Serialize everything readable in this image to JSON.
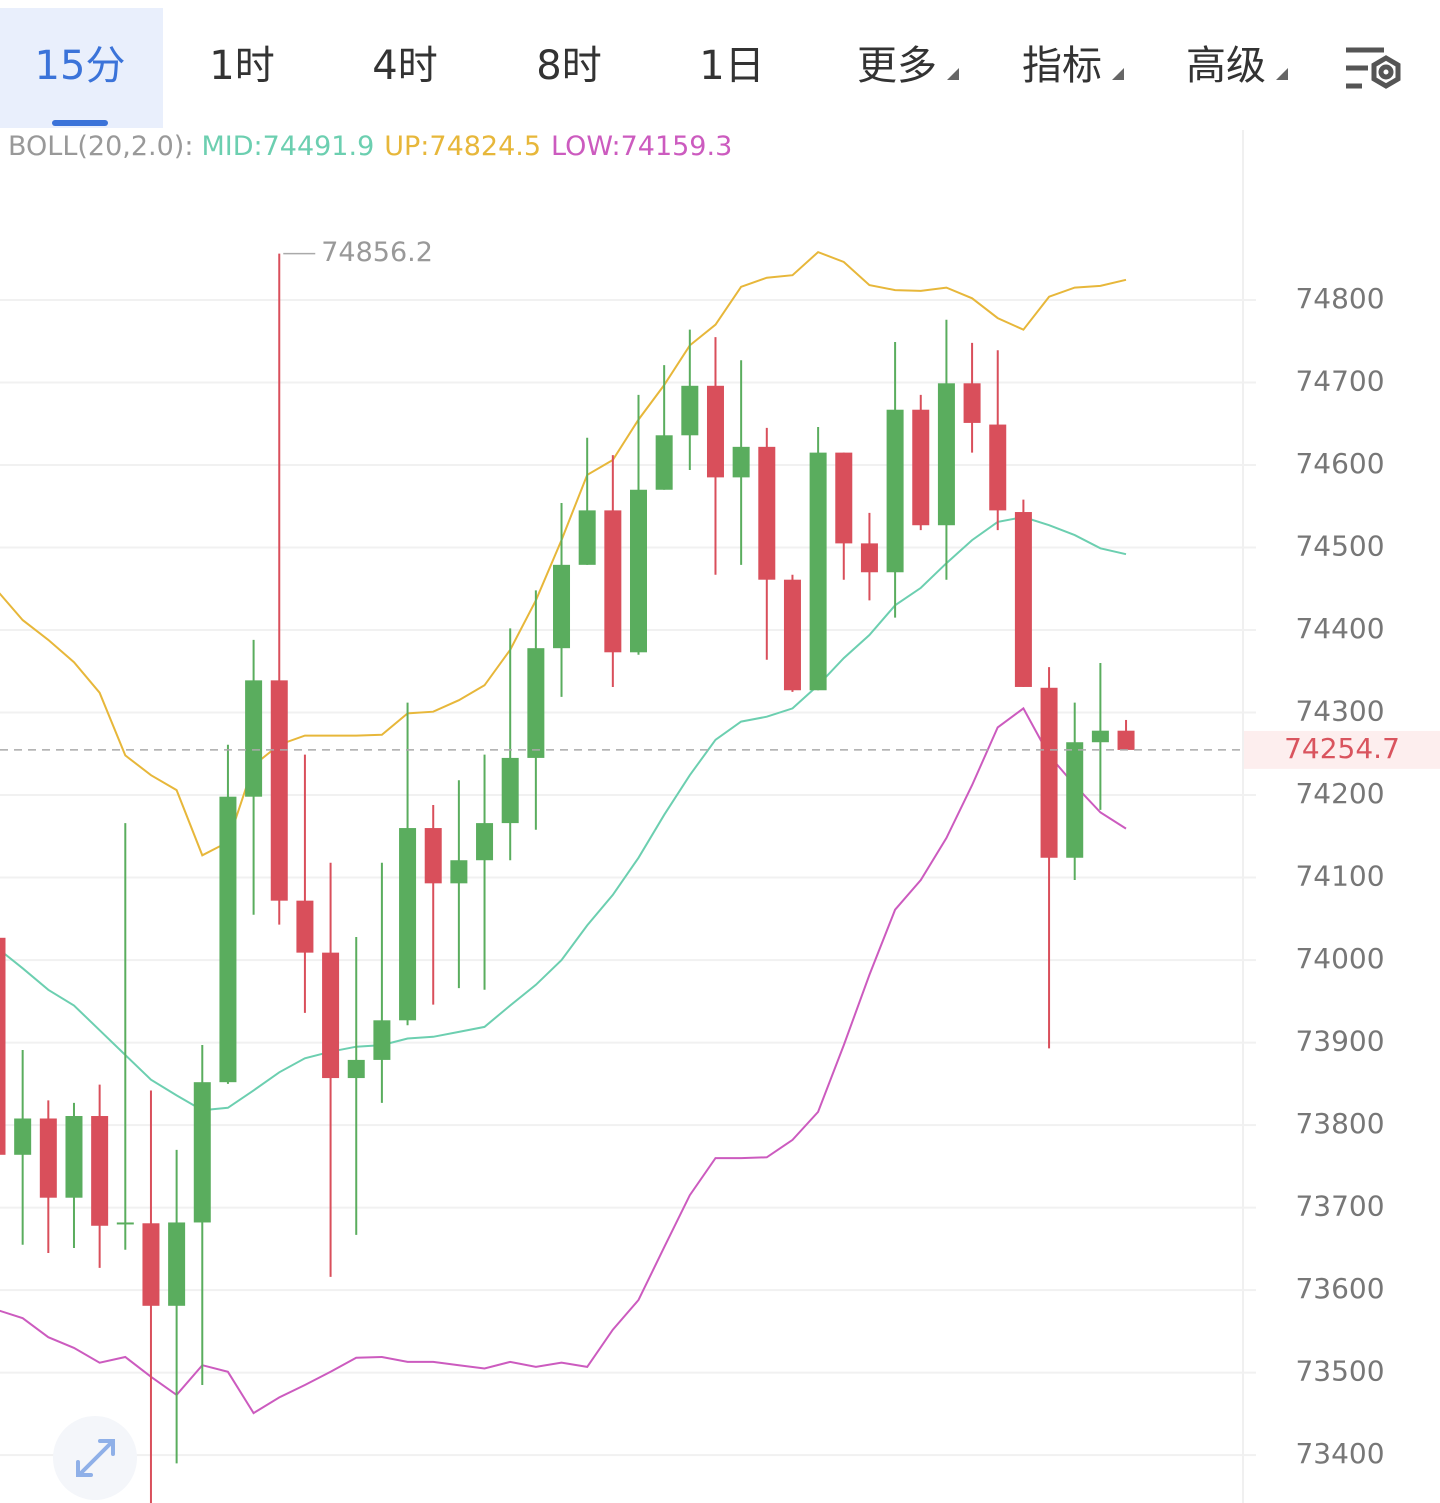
{
  "toolbar": {
    "tabs": [
      "15分",
      "1时",
      "4时",
      "8时",
      "1日",
      "更多",
      "指标",
      "高级"
    ]
  },
  "chart_data": {
    "type": "candlestick",
    "indicator": "BOLL(20,2.0):",
    "categories": [
      null,
      null,
      null,
      null,
      null,
      null,
      null,
      null,
      null,
      null,
      null,
      null,
      null,
      null,
      null,
      null,
      null,
      null,
      null,
      null,
      null,
      null,
      null,
      null,
      null,
      null,
      null,
      null,
      null,
      null,
      null,
      null,
      null,
      null,
      null,
      null,
      null,
      null,
      null,
      null,
      null,
      null,
      null,
      null,
      null
    ],
    "open": [
      74027,
      73764,
      73808,
      73712,
      73811,
      73680,
      73681,
      73581,
      73682,
      73852,
      74198,
      74339,
      74072,
      74009,
      73857,
      73879,
      73927,
      74160,
      74093,
      74121,
      74166,
      74245,
      74378,
      74479,
      74545,
      74373,
      74570,
      74636,
      74696,
      74585,
      74622,
      74461,
      74327,
      74615,
      74505,
      74470,
      74667,
      74527,
      74699,
      74649,
      74543,
      74330,
      74124,
      74264,
      74278
    ],
    "high": [
      74027,
      73891,
      73830,
      73827,
      73849,
      74166,
      73842,
      73770,
      73897,
      74261,
      74388,
      74856.2,
      74249,
      74118,
      74028,
      74118,
      74312,
      74188,
      74218,
      74249,
      74402,
      74448,
      74554,
      74633,
      74612,
      74685,
      74721,
      74764,
      74755,
      74727,
      74645,
      74467,
      74646,
      74615,
      74542,
      74749,
      74685,
      74776,
      74748,
      74739,
      74558,
      74355,
      74312,
      74360,
      74291
    ],
    "low": [
      73764,
      73655,
      73645,
      73651,
      73627,
      73649,
      73330,
      73390,
      73485,
      73850,
      74055,
      74043,
      73936,
      73616,
      73667,
      73827,
      73921,
      73946,
      73966,
      73964,
      74121,
      74158,
      74319,
      74479,
      74331,
      74370,
      74570,
      74594,
      74467,
      74479,
      74364,
      74325,
      74327,
      74461,
      74436,
      74415,
      74521,
      74461,
      74615,
      74521,
      74331,
      73893,
      74097,
      74182,
      74254.7
    ],
    "close": [
      73764,
      73808,
      73712,
      73811,
      73678,
      73682,
      73581,
      73682,
      73852,
      74198,
      74339,
      74072,
      74009,
      73857,
      73879,
      73927,
      74160,
      74093,
      74121,
      74166,
      74245,
      74378,
      74479,
      74545,
      74373,
      74570,
      74636,
      74696,
      74585,
      74622,
      74461,
      74327,
      74615,
      74505,
      74470,
      74667,
      74527,
      74699,
      74651,
      74545,
      74331,
      74124,
      74264,
      74278,
      74254.7
    ],
    "up_color": "#5aad5e",
    "down_color": "#d94f5b",
    "series": [
      {
        "name": "MID:",
        "color": "#6ccfb0",
        "values": [
          74015,
          73990,
          73964,
          73945,
          73915,
          73885,
          73855,
          73836,
          73818,
          73821,
          73842,
          73864,
          73881,
          73889,
          73895,
          73897,
          73905,
          73907,
          73913,
          73919,
          73945,
          73970,
          74000,
          74042,
          74079,
          74124,
          74176,
          74224,
          74267,
          74289,
          74295,
          74305,
          74333,
          74366,
          74394,
          74430,
          74451,
          74481,
          74509,
          74531,
          74537,
          74527,
          74515,
          74499,
          74491.9
        ]
      },
      {
        "name": "UP:",
        "color": "#e7b73a",
        "values": [
          74448,
          74412,
          74388,
          74361,
          74324,
          74248,
          74224,
          74206,
          74127,
          74143,
          74236,
          74261,
          74272,
          74272,
          74272,
          74273,
          74299,
          74301,
          74315,
          74333,
          74376,
          74436,
          74509,
          74588,
          74606,
          74655,
          74697,
          74745,
          74770,
          74816,
          74827,
          74830,
          74858,
          74846,
          74818,
          74812,
          74811,
          74815,
          74802,
          74778,
          74764,
          74804,
          74815,
          74817,
          74824.5
        ]
      },
      {
        "name": "LOW:",
        "color": "#cc5bbf",
        "values": [
          73576,
          73566,
          73543,
          73530,
          73512,
          73519,
          73495,
          73473,
          73509,
          73501,
          73451,
          73470,
          73485,
          73501,
          73518,
          73519,
          73513,
          73513,
          73509,
          73505,
          73513,
          73507,
          73512,
          73507,
          73552,
          73588,
          73652,
          73715,
          73760,
          73760,
          73761,
          73782,
          73816,
          73897,
          73982,
          74061,
          74097,
          74148,
          74212,
          74282,
          74305,
          74248,
          74212,
          74179,
          74159.3
        ]
      }
    ],
    "ylim": [
      73342,
      75006
    ],
    "yticks": [
      74800,
      74700,
      74600,
      74500,
      74400,
      74300,
      74200,
      74100,
      74000,
      73900,
      73800,
      73700,
      73600,
      73500,
      73400
    ],
    "grid": true
  }
}
